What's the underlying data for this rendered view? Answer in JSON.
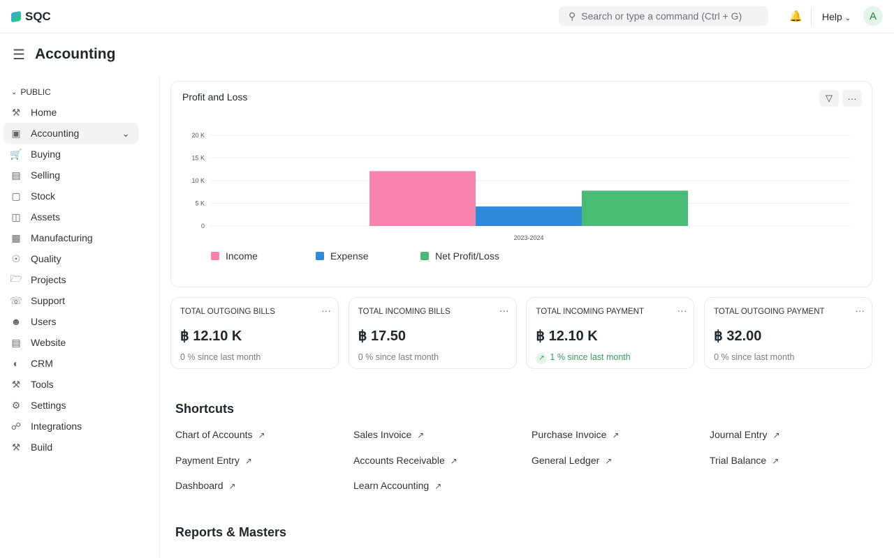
{
  "app": {
    "brand": "SQC",
    "search_placeholder": "Search or type a command (Ctrl + G)",
    "help": "Help",
    "avatar": "A",
    "page_title": "Accounting"
  },
  "sidebar": {
    "section": "PUBLIC",
    "items": [
      {
        "label": "Home",
        "icon": "tools-icon"
      },
      {
        "label": "Accounting",
        "icon": "accounting-icon"
      },
      {
        "label": "Buying",
        "icon": "buying-icon"
      },
      {
        "label": "Selling",
        "icon": "selling-icon"
      },
      {
        "label": "Stock",
        "icon": "box-icon"
      },
      {
        "label": "Assets",
        "icon": "assets-icon"
      },
      {
        "label": "Manufacturing",
        "icon": "factory-icon"
      },
      {
        "label": "Quality",
        "icon": "quality-icon"
      },
      {
        "label": "Projects",
        "icon": "folder-icon"
      },
      {
        "label": "Support",
        "icon": "headset-icon"
      },
      {
        "label": "Users",
        "icon": "users-icon"
      },
      {
        "label": "Website",
        "icon": "website-icon"
      },
      {
        "label": "CRM",
        "icon": "crm-icon"
      },
      {
        "label": "Tools",
        "icon": "tools-icon"
      },
      {
        "label": "Settings",
        "icon": "settings-icon"
      },
      {
        "label": "Integrations",
        "icon": "integrations-icon"
      },
      {
        "label": "Build",
        "icon": "build-icon"
      }
    ]
  },
  "chart_data": {
    "type": "bar",
    "title": "Profit and Loss",
    "categories": [
      "2023-2024"
    ],
    "series": [
      {
        "name": "Income",
        "values": [
          12100
        ],
        "color": "#f683ae"
      },
      {
        "name": "Expense",
        "values": [
          4300
        ],
        "color": "#318ad8"
      },
      {
        "name": "Net Profit/Loss",
        "values": [
          7800
        ],
        "color": "#48bb74"
      }
    ],
    "yticks": [
      "0",
      "5 K",
      "10 K",
      "15 K",
      "20 K"
    ],
    "ylim": [
      0,
      20000
    ],
    "legend": "bottom-left",
    "grid": true
  },
  "numbers": [
    {
      "label": "TOTAL OUTGOING BILLS",
      "value": "฿ 12.10 K",
      "sub": "0 % since last month",
      "up": false
    },
    {
      "label": "TOTAL INCOMING BILLS",
      "value": "฿ 17.50",
      "sub": "0 % since last month",
      "up": false
    },
    {
      "label": "TOTAL INCOMING PAYMENT",
      "value": "฿ 12.10 K",
      "sub": "1 % since last month",
      "up": true
    },
    {
      "label": "TOTAL OUTGOING PAYMENT",
      "value": "฿ 32.00",
      "sub": "0 % since last month",
      "up": false
    }
  ],
  "shortcuts_title": "Shortcuts",
  "shortcuts": [
    "Chart of Accounts",
    "Sales Invoice",
    "Purchase Invoice",
    "Journal Entry",
    "Payment Entry",
    "Accounts Receivable",
    "General Ledger",
    "Trial Balance",
    "Dashboard",
    "Learn Accounting"
  ],
  "reports_title": "Reports & Masters"
}
